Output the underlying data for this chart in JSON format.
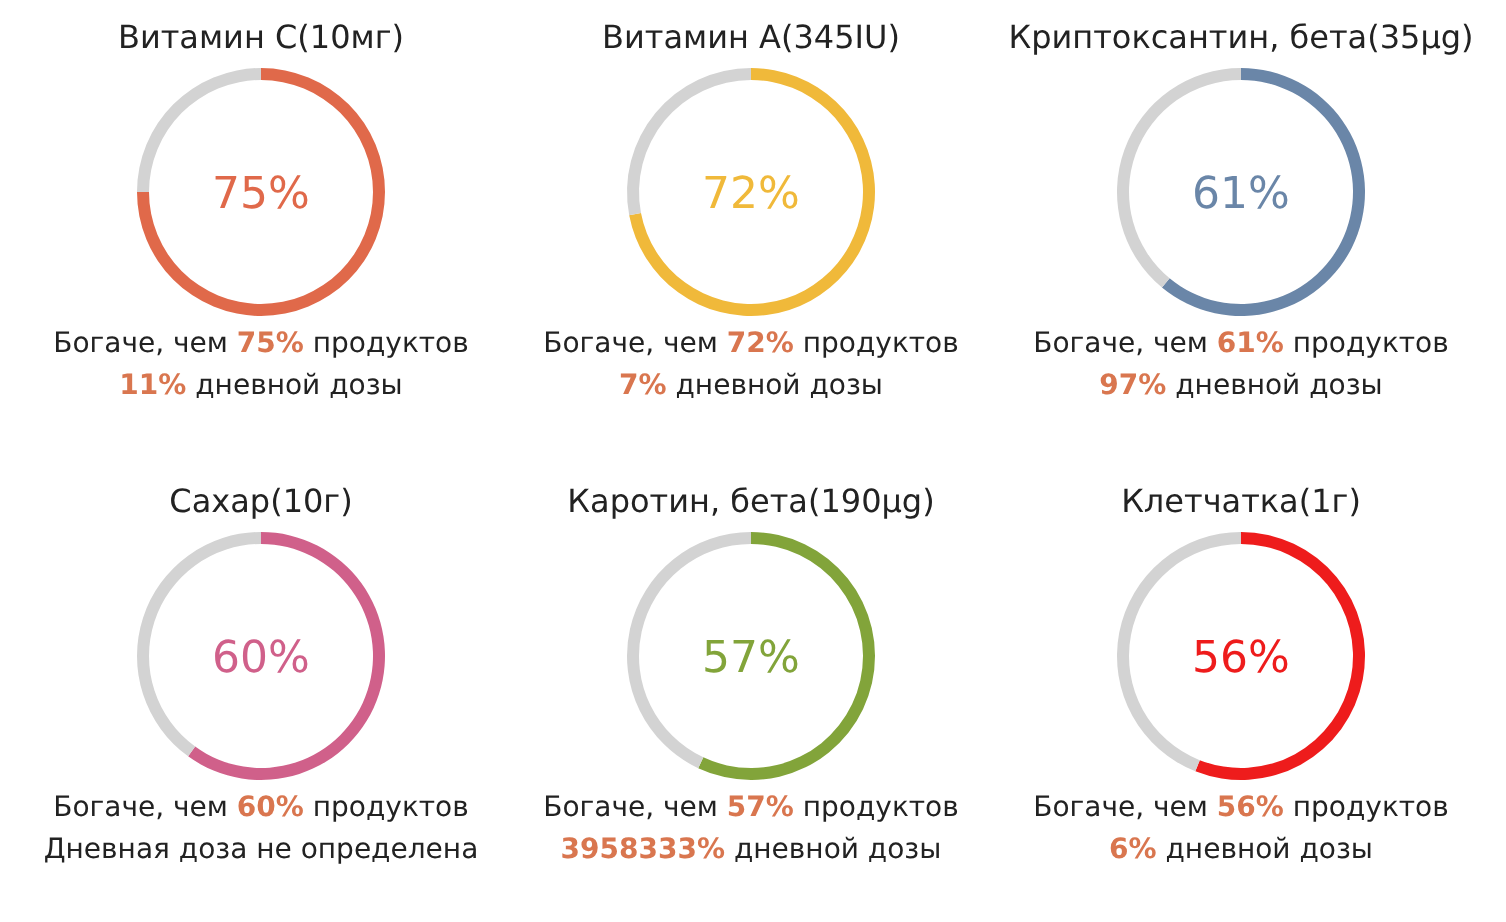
{
  "chart_data": [
    {
      "type": "donut",
      "title": "Витамин C(10мг)",
      "categories": [
        null,
        null
      ],
      "values": [
        75,
        25
      ],
      "colors": [
        "#e0694a",
        "#d3d3d3"
      ],
      "value_labels": [
        "75%",
        null
      ],
      "annotations": [
        "Богаче, чем 75% продуктов",
        "11% дневной дозы"
      ]
    },
    {
      "type": "donut",
      "title": "Витамин A(345IU)",
      "categories": [
        null,
        null
      ],
      "values": [
        72,
        28
      ],
      "colors": [
        "#f0b93a",
        "#d3d3d3"
      ],
      "value_labels": [
        "72%",
        null
      ],
      "annotations": [
        "Богаче, чем 72% продуктов",
        "7% дневной дозы"
      ]
    },
    {
      "type": "donut",
      "title": "Криптоксантин, бета(35μg)",
      "categories": [
        null,
        null
      ],
      "values": [
        61,
        39
      ],
      "colors": [
        "#6a86a8",
        "#d3d3d3"
      ],
      "value_labels": [
        "61%",
        null
      ],
      "annotations": [
        "Богаче, чем 61% продуктов",
        "97% дневной дозы"
      ]
    },
    {
      "type": "donut",
      "title": "Сахар(10г)",
      "categories": [
        null,
        null
      ],
      "values": [
        60,
        40
      ],
      "colors": [
        "#d0608a",
        "#d3d3d3"
      ],
      "value_labels": [
        "60%",
        null
      ],
      "annotations": [
        "Богаче, чем 60% продуктов",
        "Дневная доза не определена"
      ]
    },
    {
      "type": "donut",
      "title": "Каротин, бета(190μg)",
      "categories": [
        null,
        null
      ],
      "values": [
        57,
        43
      ],
      "colors": [
        "#82a43a",
        "#d3d3d3"
      ],
      "value_labels": [
        "57%",
        null
      ],
      "annotations": [
        "Богаче, чем 57% продуктов",
        "3958333% дневной дозы"
      ]
    },
    {
      "type": "donut",
      "title": "Клетчатка(1г)",
      "categories": [
        null,
        null
      ],
      "values": [
        56,
        44
      ],
      "colors": [
        "#ee1c1c",
        "#d3d3d3"
      ],
      "value_labels": [
        "56%",
        null
      ],
      "annotations": [
        "Богаче, чем 56% продуктов",
        "6% дневной дозы"
      ]
    }
  ]
}
